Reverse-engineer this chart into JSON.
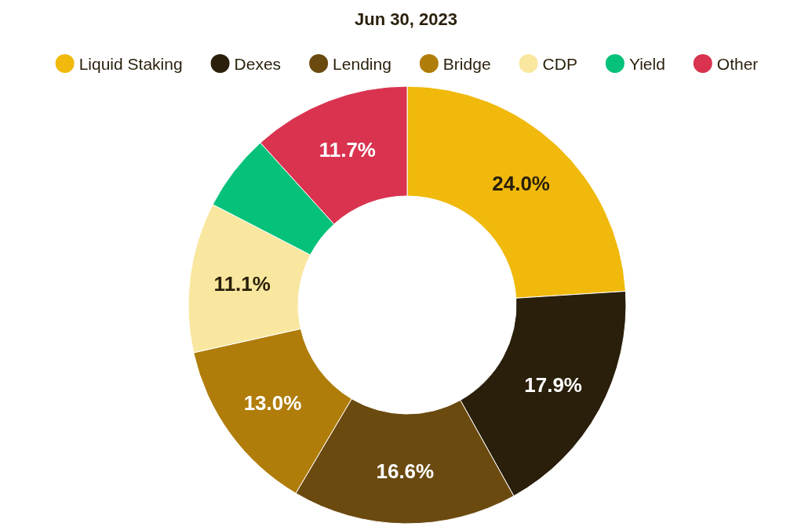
{
  "chart_data": {
    "type": "donut",
    "title": "Jun 30, 2023",
    "categories": [
      "Liquid Staking",
      "Dexes",
      "Lending",
      "Bridge",
      "CDP",
      "Yield",
      "Other"
    ],
    "values": [
      24.0,
      17.9,
      16.6,
      13.0,
      11.1,
      5.7,
      11.7
    ],
    "colors": [
      "#f0b90b",
      "#2a1f0b",
      "#6b4a10",
      "#b07d0a",
      "#f9e79f",
      "#06c17a",
      "#d9334f"
    ],
    "value_labels": [
      "24.0%",
      "17.9%",
      "16.6%",
      "13.0%",
      "11.1%",
      null,
      "11.7%"
    ],
    "legend": "top"
  }
}
